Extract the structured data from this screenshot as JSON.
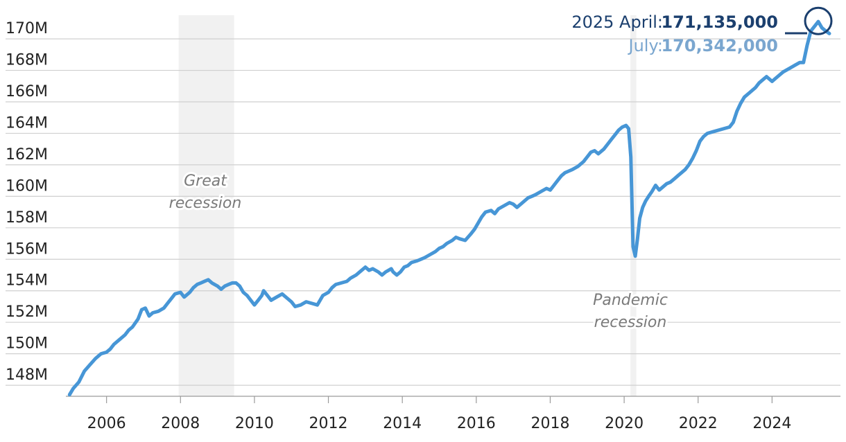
{
  "chart_data": {
    "type": "line",
    "title": "",
    "xlabel": "",
    "ylabel": "",
    "xlim": [
      2004.9,
      2025.85
    ],
    "ylim": [
      147.3,
      171.5
    ],
    "grid": true,
    "y_ticks": [
      148,
      150,
      152,
      154,
      156,
      158,
      160,
      162,
      164,
      166,
      168,
      170
    ],
    "y_tick_labels": [
      "148M",
      "150M",
      "152M",
      "154M",
      "156M",
      "158M",
      "160M",
      "162M",
      "164M",
      "166M",
      "168M",
      "170M"
    ],
    "x_ticks": [
      2006,
      2008,
      2010,
      2012,
      2014,
      2016,
      2018,
      2020,
      2022,
      2024
    ],
    "x_tick_labels": [
      "2006",
      "2008",
      "2010",
      "2012",
      "2014",
      "2016",
      "2018",
      "2020",
      "2022",
      "2024"
    ],
    "bands": [
      {
        "start": 2007.95,
        "end": 2009.45,
        "label_lines": [
          "Great",
          "recession"
        ]
      },
      {
        "start": 2020.17,
        "end": 2020.33,
        "label_lines": [
          "Pandemic",
          "recession"
        ]
      }
    ],
    "callout": {
      "line1_label": "2025 April:",
      "line1_value": "171,135,000",
      "line2_label": "July:",
      "line2_value": "170,342,000",
      "date": 2025.25,
      "value": 171.135
    },
    "colors": {
      "line": "#4796d6",
      "callout_dark": "#1b3f6e",
      "callout_light": "#7aa6cf",
      "band": "#f1f1f1"
    },
    "series": [
      {
        "unit": "millions of people",
        "points": [
          [
            2005.0,
            147.4
          ],
          [
            2005.1,
            147.8
          ],
          [
            2005.25,
            148.2
          ],
          [
            2005.4,
            148.9
          ],
          [
            2005.55,
            149.3
          ],
          [
            2005.7,
            149.7
          ],
          [
            2005.85,
            150.0
          ],
          [
            2006.0,
            150.1
          ],
          [
            2006.1,
            150.3
          ],
          [
            2006.2,
            150.6
          ],
          [
            2006.35,
            150.9
          ],
          [
            2006.5,
            151.2
          ],
          [
            2006.6,
            151.5
          ],
          [
            2006.7,
            151.7
          ],
          [
            2006.85,
            152.2
          ],
          [
            2006.95,
            152.8
          ],
          [
            2007.05,
            152.9
          ],
          [
            2007.15,
            152.4
          ],
          [
            2007.25,
            152.6
          ],
          [
            2007.4,
            152.7
          ],
          [
            2007.55,
            152.9
          ],
          [
            2007.65,
            153.2
          ],
          [
            2007.75,
            153.5
          ],
          [
            2007.85,
            153.8
          ],
          [
            2008.0,
            153.9
          ],
          [
            2008.1,
            153.6
          ],
          [
            2008.25,
            153.9
          ],
          [
            2008.35,
            154.2
          ],
          [
            2008.45,
            154.4
          ],
          [
            2008.55,
            154.5
          ],
          [
            2008.65,
            154.6
          ],
          [
            2008.75,
            154.7
          ],
          [
            2008.85,
            154.5
          ],
          [
            2009.0,
            154.3
          ],
          [
            2009.1,
            154.1
          ],
          [
            2009.2,
            154.3
          ],
          [
            2009.3,
            154.4
          ],
          [
            2009.4,
            154.5
          ],
          [
            2009.5,
            154.5
          ],
          [
            2009.6,
            154.3
          ],
          [
            2009.7,
            153.9
          ],
          [
            2009.8,
            153.7
          ],
          [
            2009.9,
            153.4
          ],
          [
            2010.0,
            153.1
          ],
          [
            2010.1,
            153.4
          ],
          [
            2010.2,
            153.7
          ],
          [
            2010.25,
            154.0
          ],
          [
            2010.35,
            153.7
          ],
          [
            2010.45,
            153.4
          ],
          [
            2010.6,
            153.6
          ],
          [
            2010.75,
            153.8
          ],
          [
            2010.9,
            153.5
          ],
          [
            2011.0,
            153.3
          ],
          [
            2011.1,
            153.0
          ],
          [
            2011.25,
            153.1
          ],
          [
            2011.4,
            153.3
          ],
          [
            2011.55,
            153.2
          ],
          [
            2011.7,
            153.1
          ],
          [
            2011.85,
            153.7
          ],
          [
            2012.0,
            153.9
          ],
          [
            2012.1,
            154.2
          ],
          [
            2012.2,
            154.4
          ],
          [
            2012.35,
            154.5
          ],
          [
            2012.5,
            154.6
          ],
          [
            2012.6,
            154.8
          ],
          [
            2012.75,
            155.0
          ],
          [
            2012.9,
            155.3
          ],
          [
            2013.0,
            155.5
          ],
          [
            2013.1,
            155.3
          ],
          [
            2013.2,
            155.4
          ],
          [
            2013.35,
            155.2
          ],
          [
            2013.45,
            155.0
          ],
          [
            2013.55,
            155.2
          ],
          [
            2013.7,
            155.4
          ],
          [
            2013.75,
            155.2
          ],
          [
            2013.85,
            155.0
          ],
          [
            2013.95,
            155.2
          ],
          [
            2014.05,
            155.5
          ],
          [
            2014.15,
            155.6
          ],
          [
            2014.25,
            155.8
          ],
          [
            2014.4,
            155.9
          ],
          [
            2014.5,
            156.0
          ],
          [
            2014.6,
            156.1
          ],
          [
            2014.75,
            156.3
          ],
          [
            2014.9,
            156.5
          ],
          [
            2015.0,
            156.7
          ],
          [
            2015.1,
            156.8
          ],
          [
            2015.2,
            157.0
          ],
          [
            2015.35,
            157.2
          ],
          [
            2015.45,
            157.4
          ],
          [
            2015.55,
            157.3
          ],
          [
            2015.7,
            157.2
          ],
          [
            2015.85,
            157.6
          ],
          [
            2015.95,
            157.9
          ],
          [
            2016.05,
            158.3
          ],
          [
            2016.15,
            158.7
          ],
          [
            2016.25,
            159.0
          ],
          [
            2016.4,
            159.1
          ],
          [
            2016.5,
            158.9
          ],
          [
            2016.6,
            159.2
          ],
          [
            2016.75,
            159.4
          ],
          [
            2016.9,
            159.6
          ],
          [
            2017.0,
            159.5
          ],
          [
            2017.1,
            159.3
          ],
          [
            2017.25,
            159.6
          ],
          [
            2017.4,
            159.9
          ],
          [
            2017.5,
            160.0
          ],
          [
            2017.6,
            160.1
          ],
          [
            2017.75,
            160.3
          ],
          [
            2017.9,
            160.5
          ],
          [
            2018.0,
            160.4
          ],
          [
            2018.1,
            160.7
          ],
          [
            2018.2,
            161.0
          ],
          [
            2018.3,
            161.3
          ],
          [
            2018.4,
            161.5
          ],
          [
            2018.5,
            161.6
          ],
          [
            2018.6,
            161.7
          ],
          [
            2018.75,
            161.9
          ],
          [
            2018.9,
            162.2
          ],
          [
            2019.0,
            162.5
          ],
          [
            2019.1,
            162.8
          ],
          [
            2019.2,
            162.9
          ],
          [
            2019.3,
            162.7
          ],
          [
            2019.45,
            163.0
          ],
          [
            2019.55,
            163.3
          ],
          [
            2019.65,
            163.6
          ],
          [
            2019.75,
            163.9
          ],
          [
            2019.85,
            164.2
          ],
          [
            2019.95,
            164.4
          ],
          [
            2020.05,
            164.5
          ],
          [
            2020.12,
            164.3
          ],
          [
            2020.18,
            162.5
          ],
          [
            2020.24,
            156.8
          ],
          [
            2020.3,
            156.2
          ],
          [
            2020.36,
            157.3
          ],
          [
            2020.42,
            158.6
          ],
          [
            2020.5,
            159.3
          ],
          [
            2020.58,
            159.7
          ],
          [
            2020.66,
            160.0
          ],
          [
            2020.75,
            160.3
          ],
          [
            2020.85,
            160.7
          ],
          [
            2020.95,
            160.4
          ],
          [
            2021.05,
            160.6
          ],
          [
            2021.15,
            160.8
          ],
          [
            2021.25,
            160.9
          ],
          [
            2021.35,
            161.1
          ],
          [
            2021.45,
            161.3
          ],
          [
            2021.55,
            161.5
          ],
          [
            2021.65,
            161.7
          ],
          [
            2021.75,
            162.0
          ],
          [
            2021.85,
            162.4
          ],
          [
            2021.95,
            162.9
          ],
          [
            2022.05,
            163.5
          ],
          [
            2022.15,
            163.8
          ],
          [
            2022.25,
            164.0
          ],
          [
            2022.4,
            164.1
          ],
          [
            2022.55,
            164.2
          ],
          [
            2022.7,
            164.3
          ],
          [
            2022.85,
            164.4
          ],
          [
            2022.95,
            164.7
          ],
          [
            2023.05,
            165.4
          ],
          [
            2023.15,
            165.9
          ],
          [
            2023.25,
            166.3
          ],
          [
            2023.4,
            166.6
          ],
          [
            2023.55,
            166.9
          ],
          [
            2023.65,
            167.2
          ],
          [
            2023.75,
            167.4
          ],
          [
            2023.85,
            167.6
          ],
          [
            2024.0,
            167.3
          ],
          [
            2024.1,
            167.5
          ],
          [
            2024.2,
            167.7
          ],
          [
            2024.3,
            167.9
          ],
          [
            2024.45,
            168.1
          ],
          [
            2024.6,
            168.3
          ],
          [
            2024.75,
            168.5
          ],
          [
            2024.85,
            168.5
          ],
          [
            2024.95,
            169.6
          ],
          [
            2025.05,
            170.5
          ],
          [
            2025.15,
            170.8
          ],
          [
            2025.25,
            171.1
          ],
          [
            2025.35,
            170.7
          ],
          [
            2025.45,
            170.5
          ],
          [
            2025.55,
            170.34
          ]
        ]
      }
    ]
  }
}
